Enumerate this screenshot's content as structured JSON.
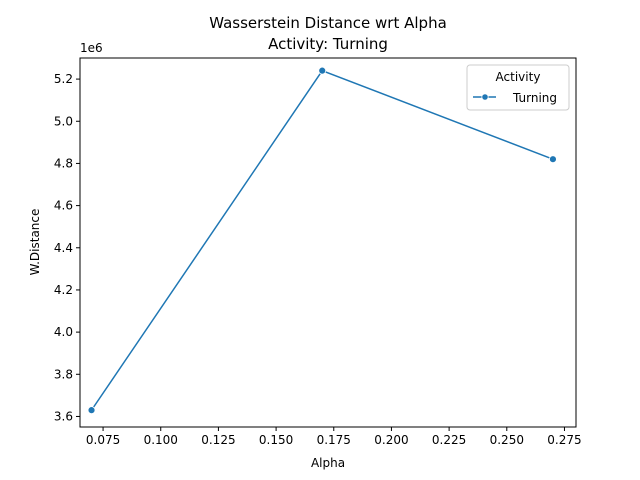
{
  "chart_data": {
    "type": "line",
    "title": "Wasserstein Distance wrt Alpha",
    "subtitle": "Activity: Turning",
    "xlabel": "Alpha",
    "ylabel": "W.Distance",
    "y_offset_label": "1e6",
    "xlim": [
      0.065,
      0.28
    ],
    "ylim": [
      3.55,
      5.3
    ],
    "x_ticks": [
      0.075,
      0.1,
      0.125,
      0.15,
      0.175,
      0.2,
      0.225,
      0.25,
      0.275
    ],
    "x_tick_labels": [
      "0.075",
      "0.100",
      "0.125",
      "0.150",
      "0.175",
      "0.200",
      "0.225",
      "0.250",
      "0.275"
    ],
    "y_ticks": [
      3.6,
      3.8,
      4.0,
      4.2,
      4.4,
      4.6,
      4.8,
      5.0,
      5.2
    ],
    "y_tick_labels": [
      "3.6",
      "3.8",
      "4.0",
      "4.2",
      "4.4",
      "4.6",
      "4.8",
      "5.0",
      "5.2"
    ],
    "y_scale": 1000000,
    "grid": false,
    "legend": {
      "title": "Activity",
      "placement": "top-right"
    },
    "series": [
      {
        "name": "Turning",
        "color": "#1f77b4",
        "x": [
          0.07,
          0.17,
          0.27
        ],
        "y": [
          3630000,
          5240000,
          4820000
        ]
      }
    ]
  }
}
